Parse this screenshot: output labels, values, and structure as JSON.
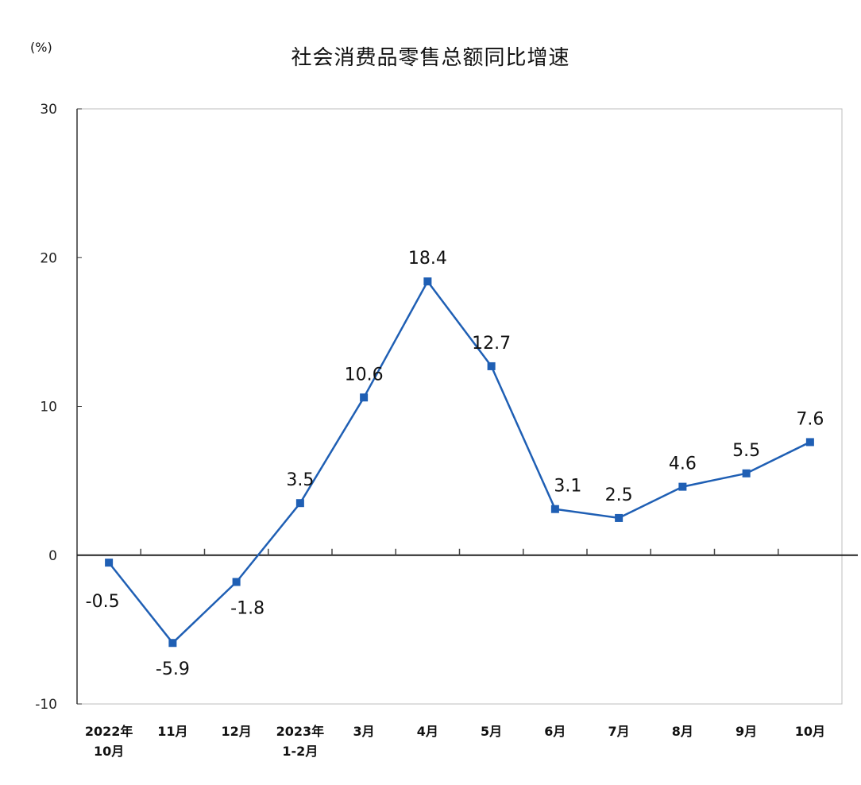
{
  "chart_data": {
    "type": "line",
    "title": "社会消费品零售总额同比增速",
    "ylabel": "(%)",
    "xlabel": "",
    "ylim": [
      -10,
      30
    ],
    "yticks": [
      -10,
      0,
      10,
      20,
      30
    ],
    "grid": false,
    "legend": "none",
    "categories": [
      [
        "2022年",
        "10月"
      ],
      [
        "11月"
      ],
      [
        "12月"
      ],
      [
        "2023年",
        "1-2月"
      ],
      [
        "3月"
      ],
      [
        "4月"
      ],
      [
        "5月"
      ],
      [
        "6月"
      ],
      [
        "7月"
      ],
      [
        "8月"
      ],
      [
        "9月"
      ],
      [
        "10月"
      ]
    ],
    "series": [
      {
        "values": [
          -0.5,
          -5.9,
          -1.8,
          3.5,
          10.6,
          18.4,
          12.7,
          3.1,
          2.5,
          4.6,
          5.5,
          7.6
        ],
        "labels": [
          "-0.5",
          "-5.9",
          "-1.8",
          "3.5",
          "10.6",
          "18.4",
          "12.7",
          "3.1",
          "2.5",
          "4.6",
          "5.5",
          "7.6"
        ],
        "color": "#1f5fb4"
      }
    ]
  }
}
